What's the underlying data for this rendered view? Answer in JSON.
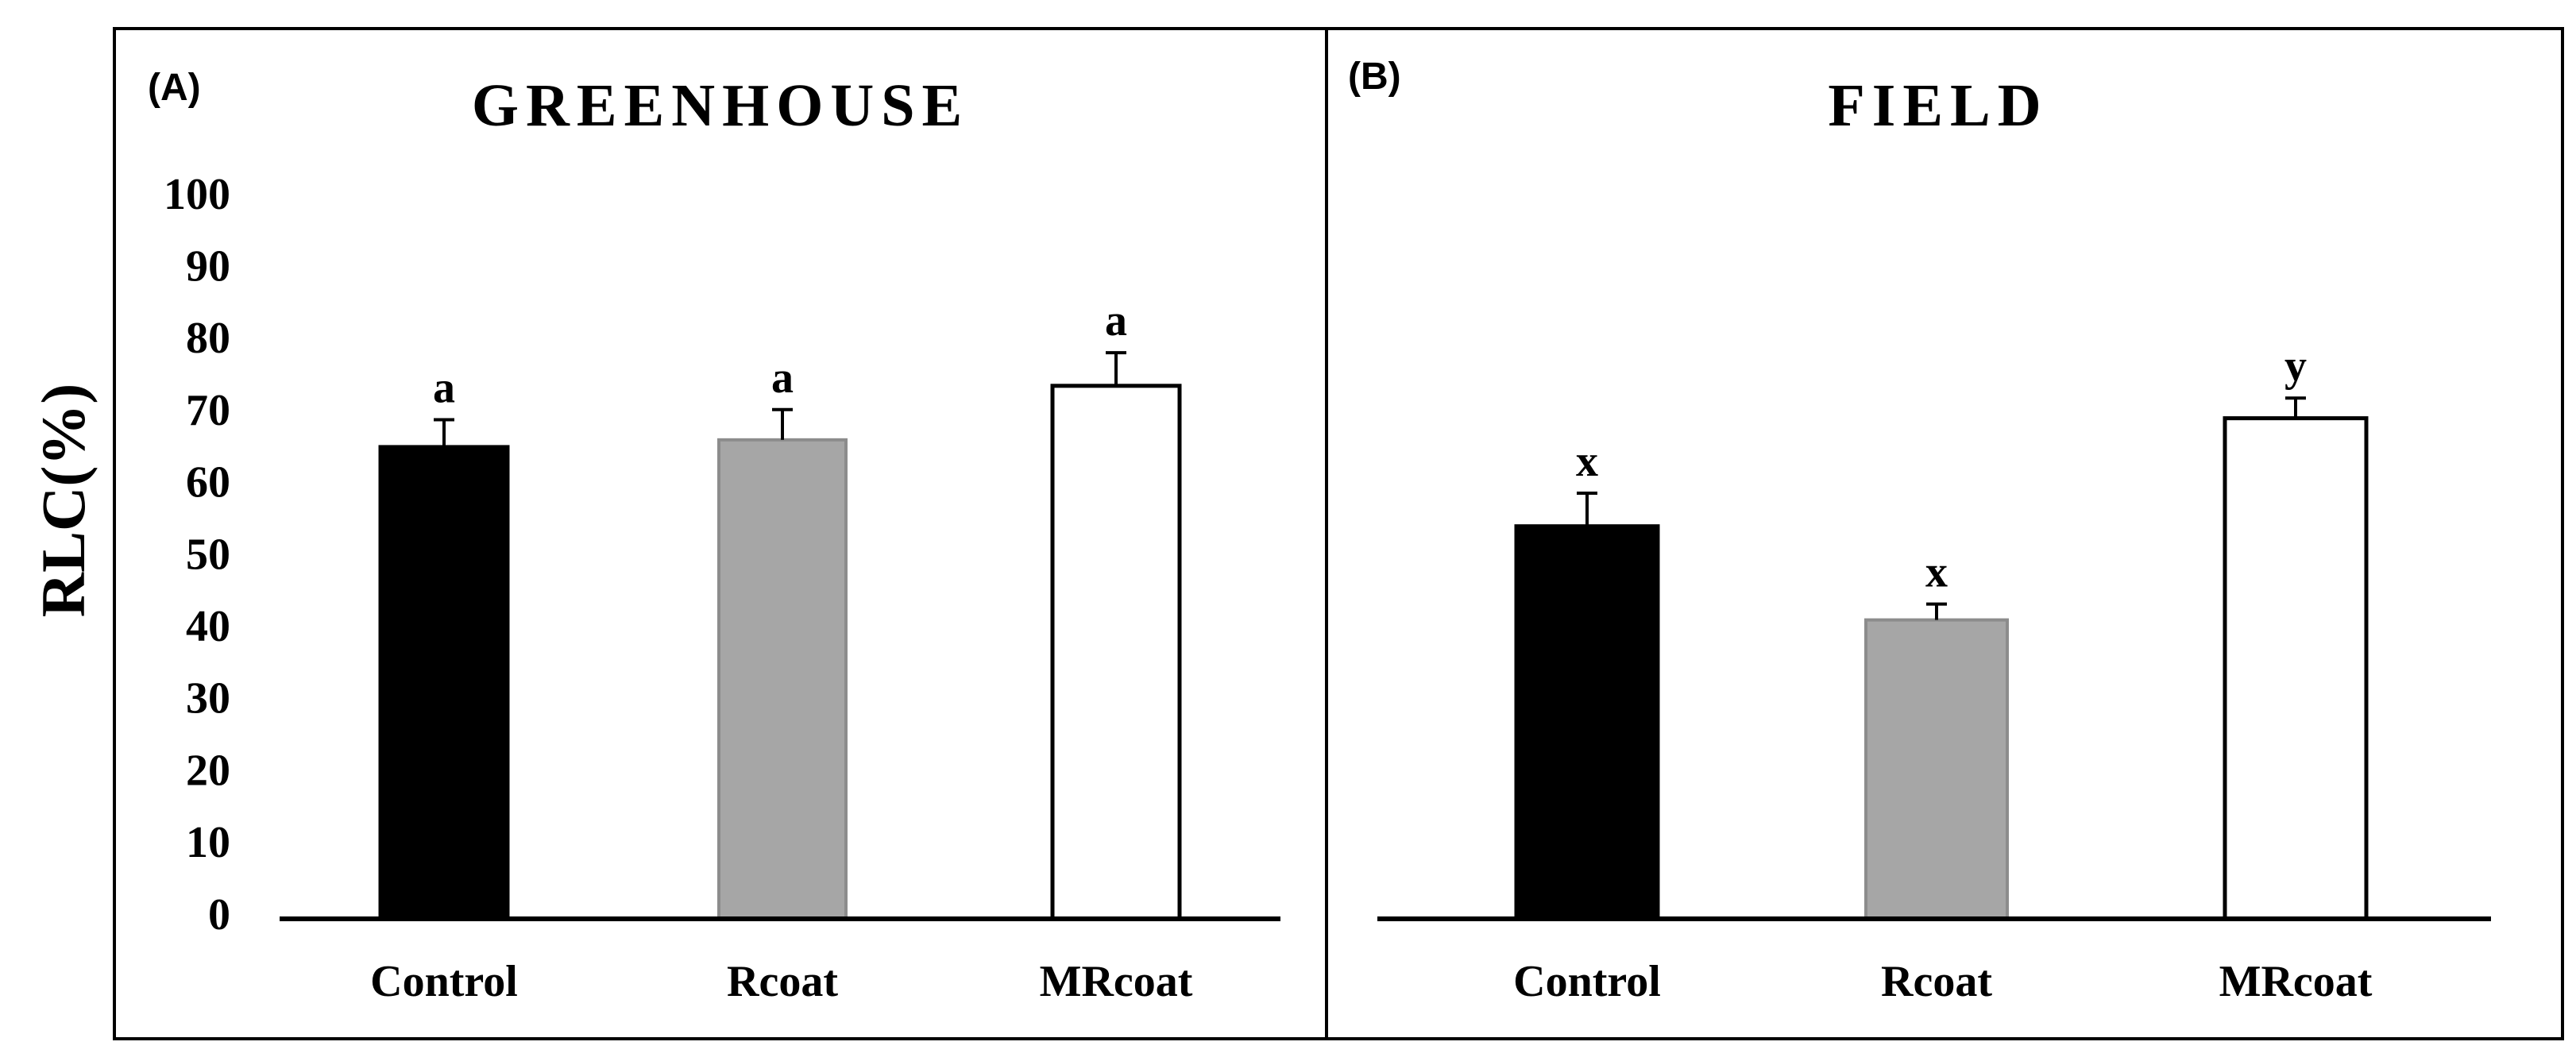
{
  "chart_data": [
    {
      "type": "bar",
      "panel": "(A)",
      "title": "GREENHOUSE",
      "xlabel": "",
      "ylabel": "RLC(%)",
      "ylim": [
        0,
        100
      ],
      "yticks": [
        0,
        10,
        20,
        30,
        40,
        50,
        60,
        70,
        80,
        90,
        100
      ],
      "categories": [
        "Control",
        "Rcoat",
        "MRcoat"
      ],
      "values": [
        65.5,
        66.5,
        74
      ],
      "errors": [
        3.8,
        4.2,
        4.6
      ],
      "significance_letters": [
        "a",
        "a",
        "a"
      ],
      "bar_colors": [
        "#000000",
        "#a6a6a6",
        "#ffffff"
      ]
    },
    {
      "type": "bar",
      "panel": "(B)",
      "title": "FIELD",
      "xlabel": "",
      "ylabel": "RLC(%)",
      "ylim": [
        0,
        100
      ],
      "categories": [
        "Control",
        "Rcoat",
        "MRcoat"
      ],
      "values": [
        54.5,
        41.5,
        69.5
      ],
      "errors": [
        4.6,
        2.2,
        2.8
      ],
      "significance_letters": [
        "x",
        "x",
        "y"
      ],
      "bar_colors": [
        "#000000",
        "#a6a6a6",
        "#ffffff"
      ]
    }
  ]
}
